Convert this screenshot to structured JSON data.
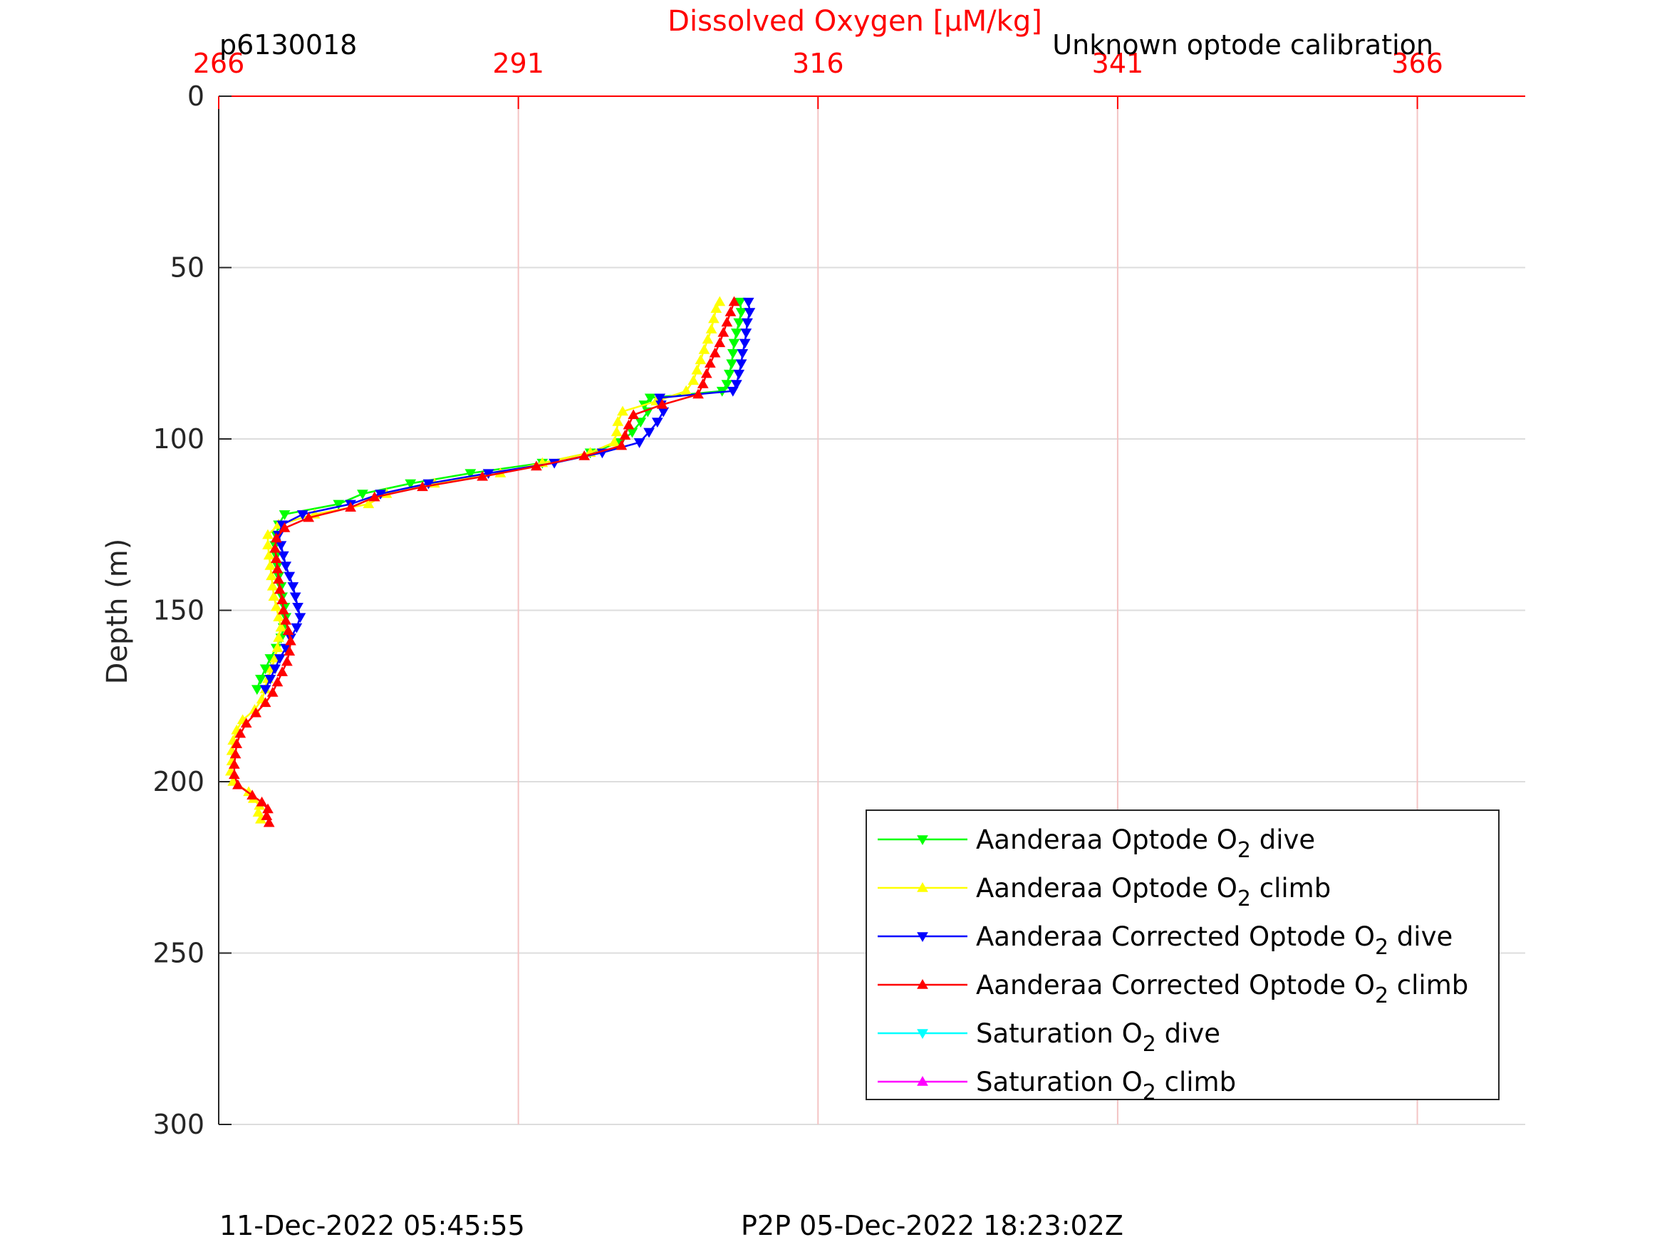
{
  "chart_data": {
    "type": "line",
    "title": "Dissolved Oxygen [μM/kg]",
    "top_left_label": "p6130018",
    "top_right_label": "Unknown optode calibration",
    "ylabel": "Depth (m)",
    "xlim": [
      266,
      375
    ],
    "ylim": [
      0,
      300
    ],
    "y_reversed": true,
    "x_axis_location": "top",
    "x_ticks": [
      266,
      291,
      316,
      341,
      366
    ],
    "y_ticks": [
      0,
      50,
      100,
      150,
      200,
      250,
      300
    ],
    "grid": true,
    "legend_position": "bottom-right",
    "footer_left": "11-Dec-2022 05:45:55",
    "footer_right": "P2P 05-Dec-2022 18:23:02Z",
    "colors": {
      "title": "#ff0000",
      "x_axis": "#ff0000",
      "grid_x": "#f4c4c4",
      "grid_y": "#dddddd"
    },
    "series": [
      {
        "name": "Aanderaa Optode O2 dive",
        "label_main": "Aanderaa Optode O",
        "label_sub": "2",
        "label_tail": " dive",
        "color": "#00ff00",
        "marker": "down",
        "depth": [
          60,
          63,
          66,
          69,
          72,
          75,
          78,
          81,
          84,
          86,
          88,
          90,
          92,
          95,
          98,
          101,
          104,
          107,
          110,
          113,
          116,
          119,
          122,
          125,
          128,
          131,
          134,
          137,
          140,
          143,
          146,
          149,
          152,
          155,
          158,
          161,
          164,
          167,
          170,
          173
        ],
        "oxygen": [
          309.5,
          309.6,
          309.4,
          309.2,
          309.0,
          308.9,
          308.8,
          308.6,
          308.4,
          308.0,
          302.0,
          301.5,
          301.8,
          301.2,
          300.5,
          299.5,
          297.0,
          293.0,
          287.0,
          282.0,
          278.0,
          276.0,
          271.5,
          271.0,
          270.8,
          270.7,
          270.8,
          270.9,
          271.0,
          271.2,
          271.3,
          271.5,
          271.6,
          271.4,
          271.2,
          270.8,
          270.3,
          269.9,
          269.5,
          269.2
        ]
      },
      {
        "name": "Aanderaa Optode O2 climb",
        "label_main": "Aanderaa Optode O",
        "label_sub": "2",
        "label_tail": " climb",
        "color": "#ffff00",
        "marker": "up",
        "depth": [
          211,
          209,
          207,
          205,
          203,
          200,
          197,
          194,
          191,
          188,
          185,
          182,
          179,
          176,
          173,
          170,
          167,
          164,
          161,
          158,
          155,
          152,
          149,
          146,
          143,
          140,
          137,
          134,
          131,
          128,
          125,
          122,
          119,
          116,
          113,
          110,
          107,
          104,
          101,
          98,
          95,
          92,
          89,
          86,
          83,
          80,
          77,
          74,
          71,
          68,
          65,
          62,
          60
        ],
        "oxygen": [
          269.5,
          269.3,
          269.4,
          268.9,
          268.5,
          267.2,
          267.0,
          267.1,
          267.1,
          267.2,
          267.5,
          268.0,
          269.0,
          269.6,
          269.9,
          270.1,
          270.4,
          270.7,
          270.9,
          271.0,
          271.2,
          271.0,
          270.8,
          270.6,
          270.5,
          270.4,
          270.3,
          270.2,
          270.1,
          270.1,
          271.0,
          274.0,
          278.5,
          280.0,
          284.0,
          289.5,
          293.0,
          297.0,
          299.0,
          299.2,
          299.3,
          299.7,
          302.5,
          305.0,
          305.6,
          305.9,
          306.2,
          306.5,
          306.8,
          307.1,
          307.3,
          307.5,
          307.8
        ]
      },
      {
        "name": "Aanderaa Corrected Optode O2 dive",
        "label_main": "Aanderaa Corrected Optode O",
        "label_sub": "2",
        "label_tail": " dive",
        "color": "#0000ff",
        "marker": "down",
        "depth": [
          60,
          63,
          66,
          69,
          72,
          75,
          78,
          81,
          84,
          86,
          88,
          90,
          92,
          95,
          98,
          101,
          104,
          107,
          110,
          113,
          116,
          119,
          122,
          125,
          128,
          131,
          134,
          137,
          140,
          143,
          146,
          149,
          152,
          155,
          158,
          161,
          164,
          167,
          170,
          173
        ],
        "oxygen": [
          310.2,
          310.3,
          310.1,
          310.0,
          309.9,
          309.7,
          309.6,
          309.4,
          309.2,
          308.9,
          302.8,
          302.9,
          303.1,
          302.6,
          301.9,
          301.1,
          298.0,
          294.0,
          288.5,
          283.5,
          279.5,
          277.0,
          273.0,
          271.3,
          271.0,
          271.2,
          271.4,
          271.6,
          271.9,
          272.2,
          272.4,
          272.6,
          272.8,
          272.5,
          272.0,
          271.6,
          271.1,
          270.7,
          270.3,
          269.9
        ]
      },
      {
        "name": "Aanderaa Corrected Optode O2 climb",
        "label_main": "Aanderaa Corrected Optode O",
        "label_sub": "2",
        "label_tail": " climb",
        "color": "#ff0000",
        "marker": "up",
        "depth": [
          212,
          210,
          208,
          206,
          204,
          201,
          198,
          195,
          192,
          189,
          186,
          183,
          180,
          177,
          174,
          171,
          168,
          165,
          162,
          159,
          156,
          153,
          150,
          147,
          144,
          141,
          138,
          135,
          132,
          129,
          126,
          123,
          120,
          117,
          114,
          111,
          108,
          105,
          102,
          99,
          96,
          93,
          90,
          87,
          84,
          81,
          78,
          75,
          72,
          69,
          66,
          63,
          60
        ],
        "oxygen": [
          270.2,
          270.0,
          270.1,
          269.6,
          268.8,
          267.6,
          267.3,
          267.3,
          267.4,
          267.5,
          267.8,
          268.3,
          269.1,
          269.9,
          270.5,
          270.9,
          271.3,
          271.7,
          271.9,
          272.0,
          271.8,
          271.6,
          271.4,
          271.3,
          271.1,
          271.0,
          270.9,
          270.8,
          270.7,
          270.8,
          271.5,
          273.5,
          277.0,
          279.0,
          283.0,
          288.0,
          292.5,
          296.5,
          299.6,
          299.9,
          300.2,
          300.6,
          303.0,
          306.0,
          306.4,
          306.7,
          307.0,
          307.4,
          307.8,
          308.1,
          308.4,
          308.7,
          309.0
        ]
      },
      {
        "name": "Saturation O2 dive",
        "label_main": "Saturation O",
        "label_sub": "2",
        "label_tail": " dive",
        "color": "#00ffff",
        "marker": "down",
        "depth": [],
        "oxygen": []
      },
      {
        "name": "Saturation O2 climb",
        "label_main": "Saturation O",
        "label_sub": "2",
        "label_tail": " climb",
        "color": "#ff00ff",
        "marker": "up",
        "depth": [],
        "oxygen": []
      }
    ]
  }
}
